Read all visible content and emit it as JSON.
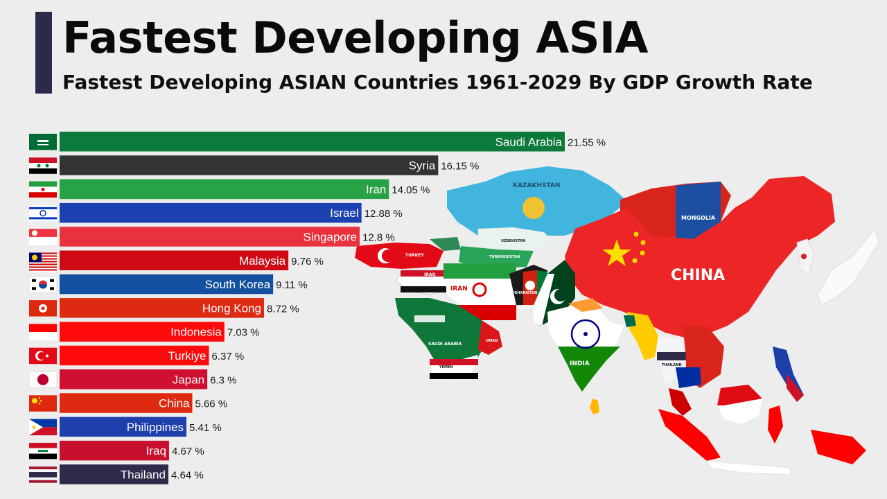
{
  "header": {
    "title": "Fastest Developing ASIA",
    "subtitle": "Fastest Developing ASIAN Countries 1961-2029 By GDP Growth Rate"
  },
  "map": {
    "labels": {
      "kazakhstan": "KAZAKHSTAN",
      "mongolia": "MONGOLIA",
      "china": "CHINA",
      "turkey": "TURKEY",
      "iraq": "IRAQ",
      "iran": "IRAN",
      "afghanistan": "AFGHANISTAN",
      "pakistan": "PAKISTAN",
      "saudi": "SAUDI ARABIA",
      "oman": "OMAN",
      "yemen": "YEMEN",
      "india": "INDIA",
      "thailand": "THAILAND",
      "uzbekistan": "UZBEKISTAN",
      "turkmenistan": "TURKMENISTAN"
    }
  },
  "chart_data": {
    "type": "bar",
    "orientation": "horizontal",
    "value_suffix": " %",
    "xlim": [
      0,
      21.55
    ],
    "categories": [
      "Saudi Arabia",
      "Syria",
      "Iran",
      "Israel",
      "Singapore",
      "Malaysia",
      "South Korea",
      "Hong Kong",
      "Indonesia",
      "Turkiye",
      "Japan",
      "China",
      "Philippines",
      "Iraq",
      "Thailand"
    ],
    "values": [
      21.55,
      16.15,
      14.05,
      12.88,
      12.8,
      9.76,
      9.11,
      8.72,
      7.03,
      6.37,
      6.3,
      5.66,
      5.41,
      4.67,
      4.64
    ],
    "value_labels": [
      "21.55 %",
      "16.15 %",
      "14.05 %",
      "12.88 %",
      "12.8 %",
      "9.76 %",
      "9.11 %",
      "8.72 %",
      "7.03 %",
      "6.37 %",
      "6.3 %",
      "5.66 %",
      "5.41 %",
      "4.67 %",
      "4.64 %"
    ],
    "colors": [
      "#0c7a3a",
      "#333333",
      "#27a244",
      "#1c42b2",
      "#e8333f",
      "#cf0a14",
      "#1450a0",
      "#de2a10",
      "#ff0a0a",
      "#ff0a0a",
      "#d01030",
      "#de2a10",
      "#1f3fad",
      "#c8102e",
      "#2d2a4a"
    ],
    "flags": [
      "saudi-arabia-flag",
      "syria-flag",
      "iran-flag",
      "israel-flag",
      "singapore-flag",
      "malaysia-flag",
      "south-korea-flag",
      "hong-kong-flag",
      "indonesia-flag",
      "turkiye-flag",
      "japan-flag",
      "china-flag",
      "philippines-flag",
      "iraq-flag",
      "thailand-flag"
    ]
  }
}
